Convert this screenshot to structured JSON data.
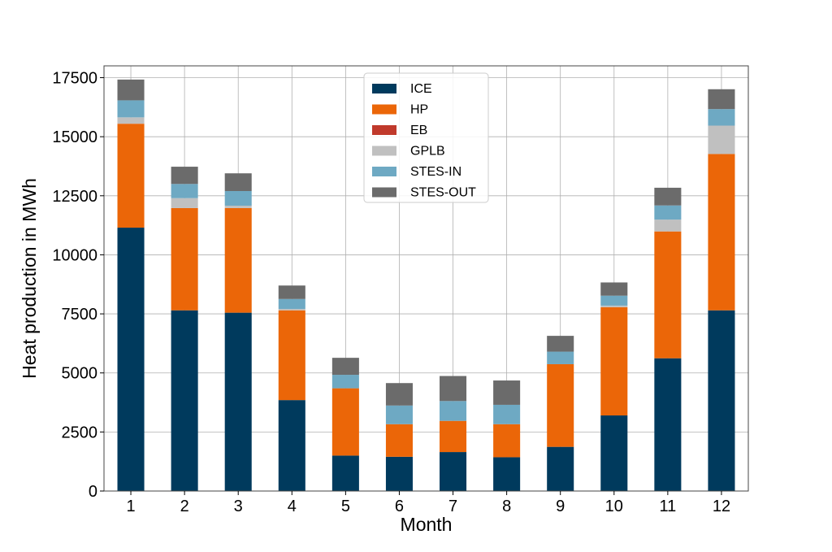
{
  "chart_data": {
    "type": "bar",
    "stacked": true,
    "xlabel": "Month",
    "ylabel": "Heat production in MWh",
    "categories": [
      "1",
      "2",
      "3",
      "4",
      "5",
      "6",
      "7",
      "8",
      "9",
      "10",
      "11",
      "12"
    ],
    "ylim": [
      0,
      18000
    ],
    "yticks": [
      0,
      2500,
      5000,
      7500,
      10000,
      12500,
      15000,
      17500
    ],
    "grid": true,
    "legend_position": "top-center",
    "series": [
      {
        "name": "ICE",
        "color": "#003a5d",
        "values": [
          11150,
          7650,
          7550,
          3850,
          1500,
          1450,
          1650,
          1430,
          1870,
          3200,
          5620,
          7650
        ]
      },
      {
        "name": "HP",
        "color": "#eb6608",
        "values": [
          4400,
          4330,
          4430,
          3800,
          2850,
          1380,
          1320,
          1400,
          3500,
          4580,
          5370,
          6620
        ]
      },
      {
        "name": "EB",
        "color": "#c0392b",
        "values": [
          0,
          0,
          0,
          0,
          0,
          0,
          0,
          0,
          0,
          0,
          0,
          0
        ]
      },
      {
        "name": "GPLB",
        "color": "#c0c0c0",
        "values": [
          270,
          420,
          100,
          60,
          0,
          0,
          0,
          0,
          0,
          70,
          500,
          1200
        ]
      },
      {
        "name": "STES-IN",
        "color": "#6ea9c3",
        "values": [
          720,
          600,
          620,
          420,
          570,
          790,
          840,
          820,
          530,
          420,
          600,
          700
        ]
      },
      {
        "name": "STES-OUT",
        "color": "#6b6b6b",
        "values": [
          880,
          730,
          750,
          570,
          720,
          950,
          1060,
          1030,
          670,
          560,
          750,
          840
        ]
      }
    ]
  }
}
